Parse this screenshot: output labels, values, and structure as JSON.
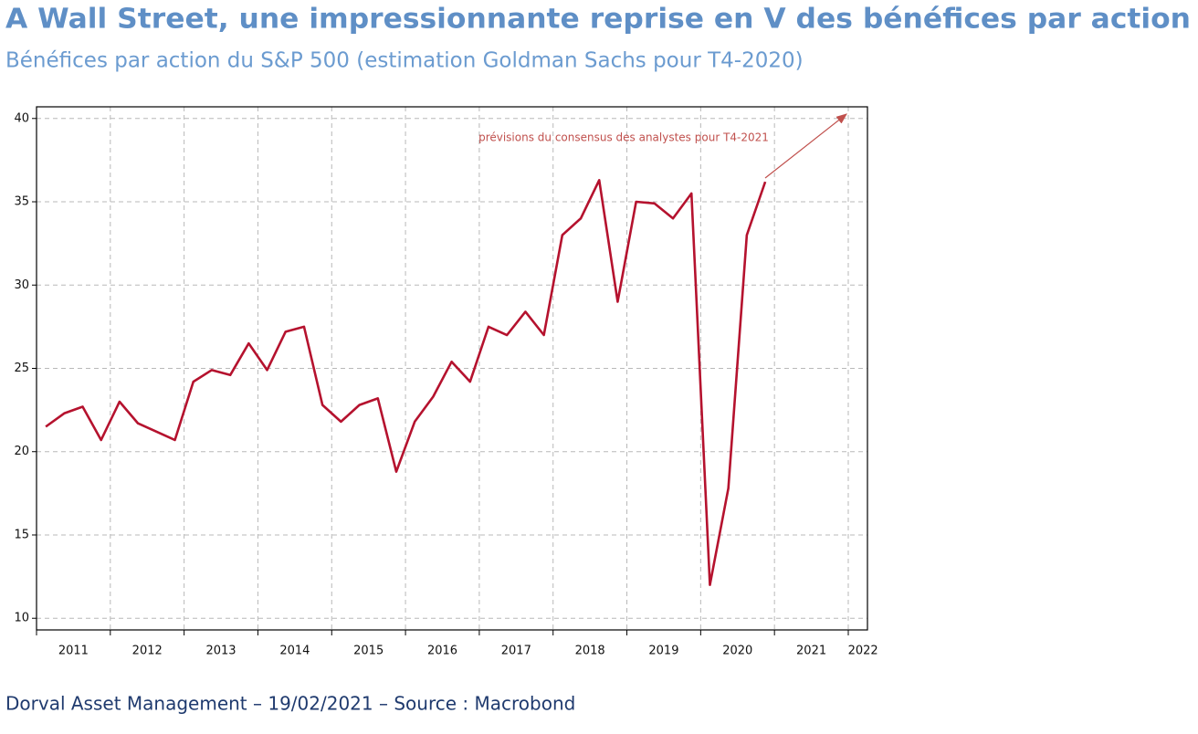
{
  "chart_data": {
    "type": "line",
    "title": "A Wall Street, une impressionnante reprise en V des bénéfices par action",
    "subtitle": "Bénéfices par action du S&P 500 (estimation Goldman Sachs pour T4-2020)",
    "annotation": "prévisions du consensus des analystes pour T4-2021",
    "footer": "Dorval Asset Management – 19/02/2021 –  Source : Macrobond",
    "x": [
      2011.125,
      2011.375,
      2011.625,
      2011.875,
      2012.125,
      2012.375,
      2012.625,
      2012.875,
      2013.125,
      2013.375,
      2013.625,
      2013.875,
      2014.125,
      2014.375,
      2014.625,
      2014.875,
      2015.125,
      2015.375,
      2015.625,
      2015.875,
      2016.125,
      2016.375,
      2016.625,
      2016.875,
      2017.125,
      2017.375,
      2017.625,
      2017.875,
      2018.125,
      2018.375,
      2018.625,
      2018.875,
      2019.125,
      2019.375,
      2019.625,
      2019.875,
      2020.125,
      2020.375,
      2020.625,
      2020.875
    ],
    "series": [
      {
        "name": "Bénéfices par action du S&P 500",
        "color": "#b5122e",
        "values": [
          21.5,
          22.3,
          22.7,
          20.7,
          23.0,
          21.7,
          21.2,
          20.7,
          24.2,
          24.9,
          24.6,
          26.5,
          24.9,
          27.2,
          27.5,
          22.8,
          21.8,
          22.8,
          23.2,
          18.8,
          21.8,
          23.3,
          25.4,
          24.2,
          27.5,
          27.0,
          28.4,
          27.0,
          33.0,
          34.0,
          36.3,
          29.0,
          35.0,
          34.9,
          34.0,
          35.5,
          12.0,
          17.8,
          33.0,
          36.2
        ]
      }
    ],
    "xlim": [
      2011,
      2022.26
    ],
    "xticks": [
      2011,
      2012,
      2013,
      2014,
      2015,
      2016,
      2017,
      2018,
      2019,
      2020,
      2021,
      2022
    ],
    "xtick_labels": [
      {
        "value": 2011.5,
        "label": "2011"
      },
      {
        "value": 2012.5,
        "label": "2012"
      },
      {
        "value": 2013.5,
        "label": "2013"
      },
      {
        "value": 2014.5,
        "label": "2014"
      },
      {
        "value": 2015.5,
        "label": "2015"
      },
      {
        "value": 2016.5,
        "label": "2016"
      },
      {
        "value": 2017.5,
        "label": "2017"
      },
      {
        "value": 2018.5,
        "label": "2018"
      },
      {
        "value": 2019.5,
        "label": "2019"
      },
      {
        "value": 2020.5,
        "label": "2020"
      },
      {
        "value": 2021.5,
        "label": "2021"
      },
      {
        "value": 2022.2,
        "label": "2022"
      }
    ],
    "ylim": [
      9.3,
      40.7
    ],
    "yticks": [
      10,
      15,
      20,
      25,
      30,
      35,
      40
    ],
    "grid": true
  }
}
